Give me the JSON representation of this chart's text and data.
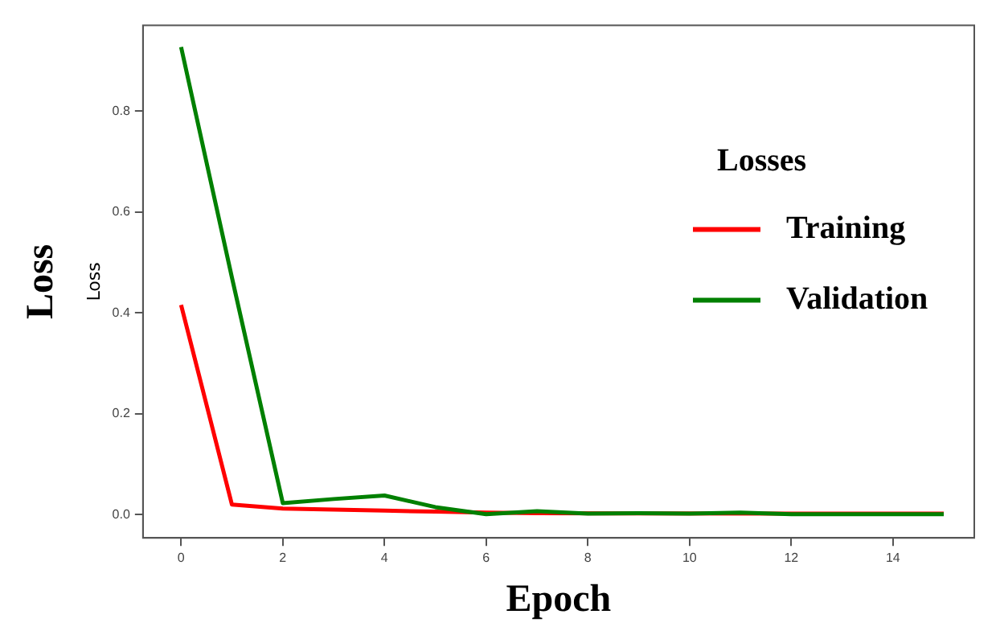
{
  "chart_data": {
    "type": "line",
    "xlabel": "Epoch",
    "ylabel": "Loss",
    "legend_title": "Losses",
    "annotations": [
      "Loss"
    ],
    "x": [
      0,
      1,
      2,
      3,
      4,
      5,
      6,
      7,
      8,
      9,
      10,
      11,
      12,
      13,
      14,
      15
    ],
    "series": [
      {
        "name": "Training",
        "color": "#ff0000",
        "values": [
          0.416,
          0.02,
          0.012,
          0.01,
          0.008,
          0.006,
          0.004,
          0.003,
          null,
          null,
          null,
          null,
          0.002,
          0.002,
          0.002,
          0.002
        ]
      },
      {
        "name": "Validation",
        "color": "#008000",
        "values": [
          0.927,
          0.47,
          0.023,
          0.031,
          0.038,
          0.015,
          0.001,
          0.007,
          0.002,
          0.003,
          0.002,
          0.004,
          0.001,
          0.001,
          0.001,
          0.001
        ]
      }
    ],
    "xlim": [
      -0.75,
      15.6
    ],
    "xticks": [
      0,
      2,
      4,
      6,
      8,
      10,
      12,
      14
    ],
    "ylim": [
      -0.046,
      0.97
    ],
    "yticks": [
      {
        "value": 0,
        "label": "0.0"
      },
      {
        "value": 0.2,
        "label": "0.2"
      },
      {
        "value": 0.4,
        "label": "0.4"
      },
      {
        "value": 0.6,
        "label": "0.6"
      },
      {
        "value": 0.8,
        "label": "0.8"
      }
    ],
    "grid": false,
    "legend": "right",
    "marker": "none",
    "line_style": "solid"
  }
}
